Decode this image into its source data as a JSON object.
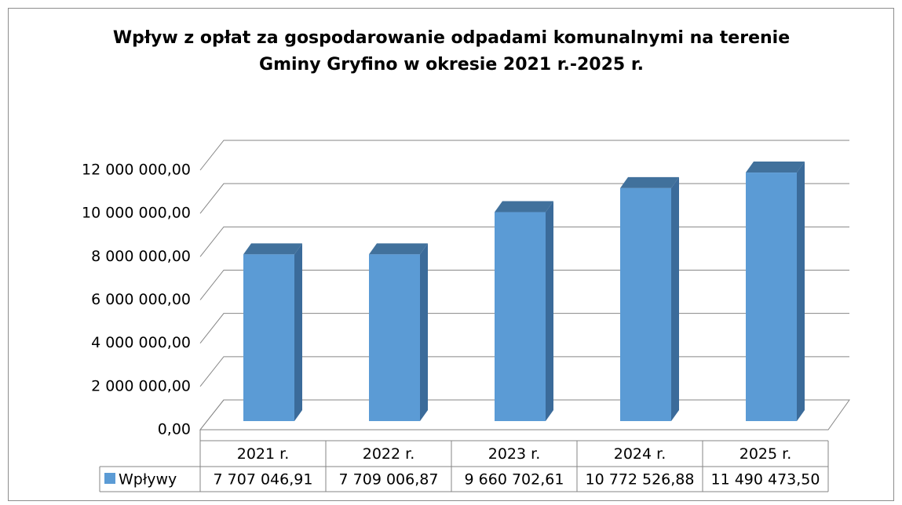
{
  "chart_data": {
    "type": "bar3d",
    "title": "Wpływ z opłat za gospodarowanie odpadami komunalnymi na terenie Gminy Gryfino w okresie 2021 r.-2025 r.",
    "categories": [
      "2021 r.",
      "2022 r.",
      "2023 r.",
      "2024 r.",
      "2025 r."
    ],
    "series": [
      {
        "name": "Wpływy",
        "color": "#5b9bd5",
        "values": [
          7707046.91,
          7709006.87,
          9660702.61,
          10772526.88,
          11490473.5
        ],
        "value_labels": [
          "7 707 046,91",
          "7 709 006,87",
          "9 660 702,61",
          "10 772 526,88",
          "11 490 473,50"
        ]
      }
    ],
    "ylim": [
      0,
      12000000
    ],
    "yticks": [
      {
        "value": 0,
        "label": "0,00"
      },
      {
        "value": 2000000,
        "label": "2 000 000,00"
      },
      {
        "value": 4000000,
        "label": "4 000 000,00"
      },
      {
        "value": 6000000,
        "label": "6 000 000,00"
      },
      {
        "value": 8000000,
        "label": "8 000 000,00"
      },
      {
        "value": 10000000,
        "label": "10 000 000,00"
      },
      {
        "value": 12000000,
        "label": "12 000 000,00"
      }
    ],
    "grid": true,
    "data_table": true
  }
}
